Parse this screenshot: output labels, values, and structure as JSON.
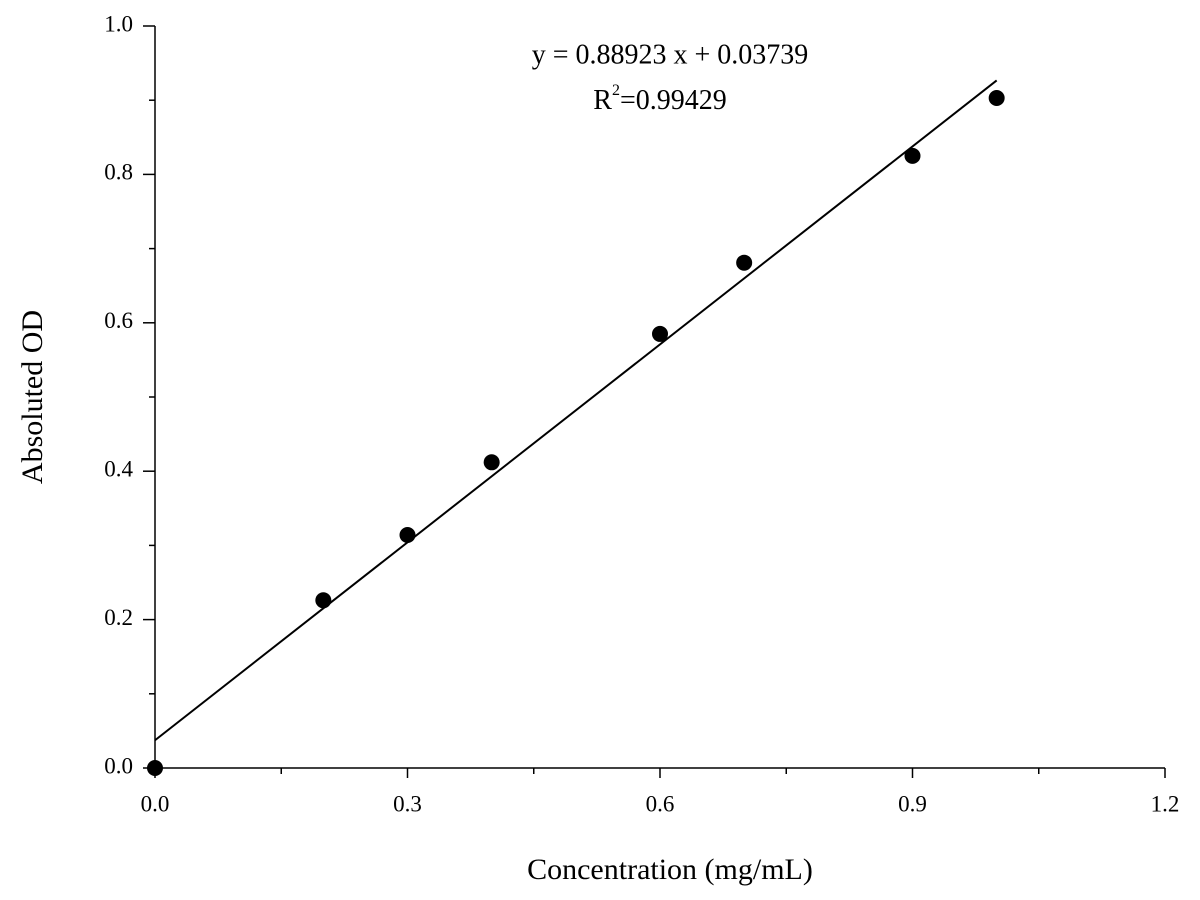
{
  "chart_data": {
    "type": "scatter",
    "x_label": "Concentration (mg/mL)",
    "y_label": "Absoluted OD",
    "equation": "y = 0.88923 x + 0.03739",
    "r_squared": {
      "base": "R",
      "sup": "2",
      "rest": "=0.99429"
    },
    "series": [
      {
        "name": "Absoluted OD",
        "color": "#000000",
        "x": [
          0,
          0.2,
          0.3,
          0.4,
          0.6,
          0.7,
          0.9,
          1.0
        ],
        "values": [
          0,
          0.226,
          0.314,
          0.412,
          0.585,
          0.681,
          0.825,
          0.903
        ]
      }
    ],
    "fit_line": {
      "color": "#000000",
      "x": [
        0,
        1.0
      ],
      "y": [
        0.03739,
        0.92662
      ]
    },
    "xlim": [
      0,
      1.2
    ],
    "ylim": [
      0,
      1.0
    ],
    "xticks": [
      {
        "value": 0,
        "label": "0.0"
      },
      0.3,
      0.6,
      0.9,
      1.2
    ],
    "yticks": [
      {
        "value": 0,
        "label": "0.0"
      },
      0.2,
      0.4,
      0.6,
      0.8,
      {
        "value": 1.0,
        "label": "1.0"
      }
    ],
    "grid": false
  }
}
